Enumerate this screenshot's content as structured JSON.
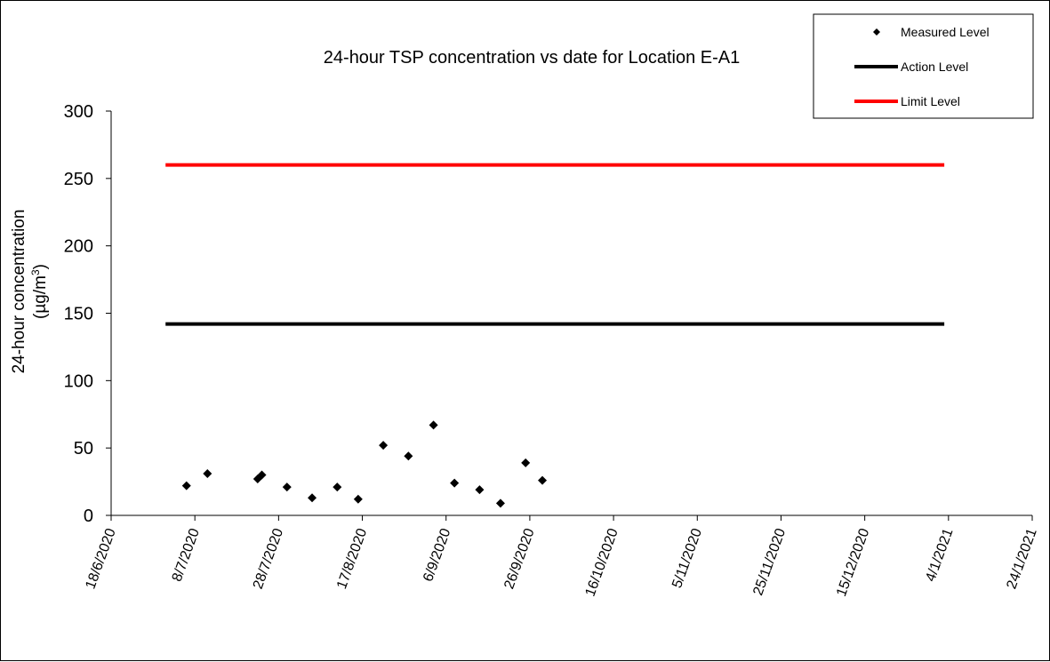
{
  "chart_data": {
    "type": "scatter",
    "title": "24-hour TSP concentration vs date for Location E-A1",
    "ylabel_line1": "24-hour concentration",
    "ylabel_line2": "(µg/m",
    "ylabel_sup": "3",
    "ylabel_close": ")",
    "xlabel": "",
    "ylim": [
      0,
      300
    ],
    "yticks": [
      0,
      50,
      100,
      150,
      200,
      250,
      300
    ],
    "xlim": [
      "2020-06-18",
      "2021-01-24"
    ],
    "xticks": [
      "2020-06-18",
      "2020-07-08",
      "2020-07-28",
      "2020-08-17",
      "2020-09-06",
      "2020-09-26",
      "2020-10-16",
      "2020-11-05",
      "2020-11-25",
      "2020-12-15",
      "2021-01-04",
      "2021-01-24"
    ],
    "xtick_labels": [
      "18/6/2020",
      "8/7/2020",
      "28/7/2020",
      "17/8/2020",
      "6/9/2020",
      "26/9/2020",
      "16/10/2020",
      "5/11/2020",
      "25/11/2020",
      "15/12/2020",
      "4/1/2021",
      "24/1/2021"
    ],
    "grid": false,
    "legend_position": "top-right",
    "series": [
      {
        "name": "Measured Level",
        "kind": "markers",
        "marker": "diamond",
        "color": "#000000",
        "x": [
          "2020-07-06",
          "2020-07-11",
          "2020-07-23",
          "2020-07-24",
          "2020-07-30",
          "2020-08-05",
          "2020-08-11",
          "2020-08-16",
          "2020-08-22",
          "2020-08-28",
          "2020-09-03",
          "2020-09-08",
          "2020-09-14",
          "2020-09-19",
          "2020-09-25",
          "2020-09-29"
        ],
        "y": [
          22,
          31,
          27,
          30,
          21,
          13,
          21,
          12,
          52,
          44,
          67,
          24,
          19,
          9,
          39,
          26
        ]
      },
      {
        "name": "Action Level",
        "kind": "line",
        "color": "#000000",
        "x": [
          "2020-07-01",
          "2021-01-03"
        ],
        "y": [
          142,
          142
        ]
      },
      {
        "name": "Limit Level",
        "kind": "line",
        "color": "#ff0000",
        "x": [
          "2020-07-01",
          "2021-01-03"
        ],
        "y": [
          260,
          260
        ]
      }
    ]
  }
}
